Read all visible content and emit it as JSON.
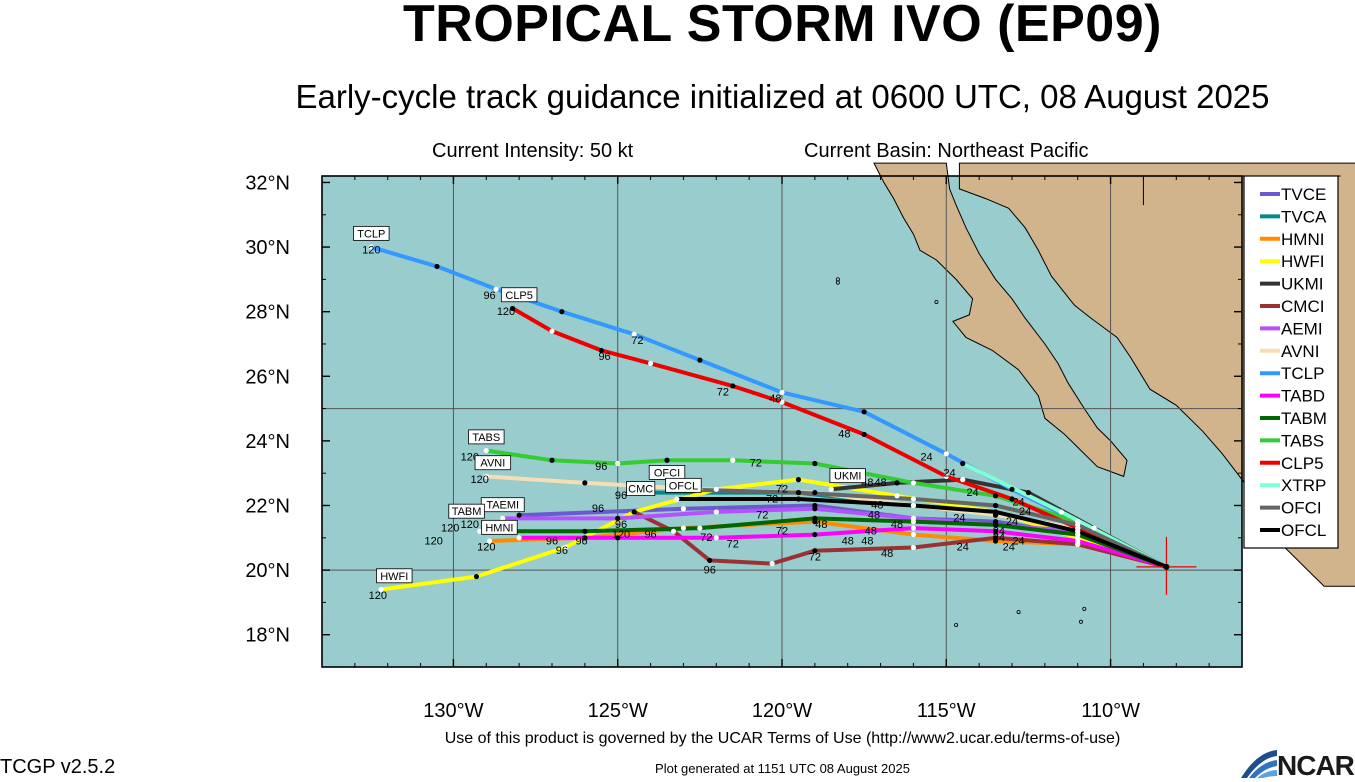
{
  "header": {
    "title": "TROPICAL STORM IVO (EP09)",
    "subtitle": "Early-cycle track guidance initialized at 0600 UTC, 08 August 2025",
    "intensity": "Current Intensity: 50 kt",
    "basin": "Current Basin: Northeast Pacific"
  },
  "footer": {
    "terms": "Use of this product is governed by the UCAR Terms of Use (http://www2.ucar.edu/terms-of-use)",
    "generated": "Plot generated at 1151 UTC   08 August 2025",
    "version": "TCGP v2.5.2",
    "logo": "NCAR"
  },
  "colors": {
    "ocean": "#99cccc",
    "land": "#d2b48c",
    "grid": "#555555"
  },
  "chart_data": {
    "type": "line",
    "xlabel": "",
    "ylabel": "",
    "xlim": [
      -134,
      -106
    ],
    "ylim": [
      17,
      32.2
    ],
    "x_ticks": [
      {
        "v": -130,
        "label": "130°W"
      },
      {
        "v": -125,
        "label": "125°W"
      },
      {
        "v": -120,
        "label": "120°W"
      },
      {
        "v": -115,
        "label": "115°W"
      },
      {
        "v": -110,
        "label": "110°W"
      }
    ],
    "y_ticks": [
      {
        "v": 18,
        "label": "18°N"
      },
      {
        "v": 20,
        "label": "20°N"
      },
      {
        "v": 22,
        "label": "22°N"
      },
      {
        "v": 24,
        "label": "24°N"
      },
      {
        "v": 26,
        "label": "26°N"
      },
      {
        "v": 28,
        "label": "28°N"
      },
      {
        "v": 30,
        "label": "30°N"
      },
      {
        "v": 32,
        "label": "32°N"
      }
    ],
    "storm_center": [
      -108.3,
      20.1
    ],
    "series": [
      {
        "name": "TVCE",
        "color": "#6a5acd",
        "points": [
          [
            -108.3,
            20.1
          ],
          [
            -111,
            21.1
          ],
          [
            -113.5,
            21.5
          ],
          [
            -116,
            21.6
          ],
          [
            -119,
            22.0
          ],
          [
            -123,
            21.9
          ],
          [
            -128,
            21.7
          ]
        ]
      },
      {
        "name": "TVCA",
        "color": "#008b8b",
        "points": [
          [
            -108.3,
            20.1
          ],
          [
            -111,
            21.3
          ],
          [
            -113.5,
            21.7
          ],
          [
            -116,
            22.0
          ],
          [
            -119.5,
            22.4
          ],
          [
            -124.5,
            22.4
          ]
        ]
      },
      {
        "name": "HMNI",
        "color": "#ff8c00",
        "points": [
          [
            -108.3,
            20.1
          ],
          [
            -111,
            20.8
          ],
          [
            -113.5,
            20.9
          ],
          [
            -116,
            21.1
          ],
          [
            -119,
            21.5
          ],
          [
            -123,
            21.3
          ],
          [
            -126,
            21.0
          ],
          [
            -128.9,
            20.9
          ]
        ]
      },
      {
        "name": "HWFI",
        "color": "#ffff00",
        "points": [
          [
            -108.3,
            20.1
          ],
          [
            -111,
            21.0
          ],
          [
            -113.5,
            21.8
          ],
          [
            -116.5,
            22.3
          ],
          [
            -119.5,
            22.8
          ],
          [
            -122,
            22.5
          ],
          [
            -124.5,
            21.8
          ],
          [
            -126.6,
            20.7
          ],
          [
            -129.3,
            19.8
          ],
          [
            -132.2,
            19.4
          ]
        ]
      },
      {
        "name": "UKMI",
        "color": "#333333",
        "points": [
          [
            -108.3,
            20.1
          ],
          [
            -110.5,
            21.3
          ],
          [
            -112.5,
            22.4
          ],
          [
            -114.5,
            22.8
          ],
          [
            -116.5,
            22.7
          ],
          [
            -118.5,
            22.5
          ]
        ]
      },
      {
        "name": "CMCI",
        "color": "#993333",
        "points": [
          [
            -108.3,
            20.1
          ],
          [
            -111,
            20.8
          ],
          [
            -113.5,
            21.0
          ],
          [
            -116,
            20.7
          ],
          [
            -119,
            20.6
          ],
          [
            -120.3,
            20.2
          ],
          [
            -122.2,
            20.3
          ],
          [
            -123.3,
            21.2
          ],
          [
            -124.5,
            21.8
          ]
        ]
      },
      {
        "name": "AEMI",
        "color": "#b452ff",
        "points": [
          [
            -108.3,
            20.1
          ],
          [
            -111,
            21.2
          ],
          [
            -113.5,
            21.4
          ],
          [
            -116,
            21.6
          ],
          [
            -119,
            21.9
          ],
          [
            -122,
            21.8
          ],
          [
            -125,
            21.6
          ],
          [
            -128.5,
            21.6
          ]
        ]
      },
      {
        "name": "AVNI",
        "color": "#f5deb3",
        "points": [
          [
            -108.3,
            20.1
          ],
          [
            -111,
            21.3
          ],
          [
            -113.5,
            21.7
          ],
          [
            -116,
            22.0
          ],
          [
            -119,
            22.4
          ],
          [
            -122.5,
            22.5
          ],
          [
            -126,
            22.7
          ],
          [
            -129,
            22.9
          ]
        ]
      },
      {
        "name": "TCLP",
        "color": "#3399ff",
        "points": [
          [
            -108.3,
            20.1
          ],
          [
            -111,
            21.5
          ],
          [
            -113,
            22.5
          ],
          [
            -115,
            23.6
          ],
          [
            -117.5,
            24.9
          ],
          [
            -120,
            25.5
          ],
          [
            -122.5,
            26.5
          ],
          [
            -124.5,
            27.3
          ],
          [
            -126.7,
            28.0
          ],
          [
            -128.7,
            28.7
          ],
          [
            -130.5,
            29.4
          ],
          [
            -132.5,
            30.0
          ]
        ]
      },
      {
        "name": "TABD",
        "color": "#ff00ff",
        "points": [
          [
            -108.3,
            20.1
          ],
          [
            -111,
            20.9
          ],
          [
            -113.5,
            21.2
          ],
          [
            -116,
            21.3
          ],
          [
            -119,
            21.1
          ],
          [
            -122,
            21.0
          ],
          [
            -125,
            21.0
          ],
          [
            -128,
            21.0
          ]
        ]
      },
      {
        "name": "TABM",
        "color": "#006600",
        "points": [
          [
            -108.3,
            20.1
          ],
          [
            -111,
            21.1
          ],
          [
            -113.5,
            21.4
          ],
          [
            -116,
            21.5
          ],
          [
            -119,
            21.6
          ],
          [
            -122.5,
            21.3
          ],
          [
            -126,
            21.2
          ],
          [
            -129.2,
            21.2
          ]
        ]
      },
      {
        "name": "TABS",
        "color": "#33cc33",
        "points": [
          [
            -108.3,
            20.1
          ],
          [
            -111,
            21.5
          ],
          [
            -113.5,
            22.3
          ],
          [
            -116,
            22.7
          ],
          [
            -119,
            23.3
          ],
          [
            -121.5,
            23.4
          ],
          [
            -123.5,
            23.4
          ],
          [
            -125,
            23.3
          ],
          [
            -127,
            23.4
          ],
          [
            -129,
            23.7
          ]
        ]
      },
      {
        "name": "CLP5",
        "color": "#ee0000",
        "points": [
          [
            -108.3,
            20.1
          ],
          [
            -111,
            21.3
          ],
          [
            -113,
            22.2
          ],
          [
            -115,
            22.9
          ],
          [
            -117.5,
            24.2
          ],
          [
            -120,
            25.2
          ],
          [
            -121.5,
            25.7
          ],
          [
            -124,
            26.4
          ],
          [
            -125.5,
            26.8
          ],
          [
            -127,
            27.4
          ],
          [
            -128.2,
            28.1
          ]
        ]
      },
      {
        "name": "XTRP",
        "color": "#7fffd4",
        "points": [
          [
            -108.3,
            20.1
          ],
          [
            -111.5,
            21.8
          ],
          [
            -114.5,
            23.3
          ]
        ]
      },
      {
        "name": "OFCI",
        "color": "#666666",
        "points": [
          [
            -108.3,
            20.1
          ],
          [
            -111,
            21.4
          ],
          [
            -113.5,
            22.0
          ],
          [
            -116,
            22.2
          ],
          [
            -119.5,
            22.4
          ],
          [
            -123.3,
            22.5
          ]
        ]
      },
      {
        "name": "OFCL",
        "color": "#000000",
        "points": [
          [
            -108.3,
            20.1
          ],
          [
            -111,
            21.2
          ],
          [
            -113.5,
            21.8
          ],
          [
            -116,
            22.0
          ],
          [
            -119.5,
            22.2
          ],
          [
            -123.2,
            22.2
          ]
        ]
      }
    ],
    "end_labels": [
      {
        "text": "TCLP",
        "lon": -132.5,
        "lat": 30.3
      },
      {
        "text": "CLP5",
        "lon": -128.0,
        "lat": 28.4
      },
      {
        "text": "TABS",
        "lon": -129.0,
        "lat": 24.0
      },
      {
        "text": "AVNI",
        "lon": -128.8,
        "lat": 23.2
      },
      {
        "text": "OFCI",
        "lon": -123.5,
        "lat": 22.9
      },
      {
        "text": "OFCL",
        "lon": -123.0,
        "lat": 22.5
      },
      {
        "text": "CMC",
        "lon": -124.3,
        "lat": 22.4
      },
      {
        "text": "UKMI",
        "lon": -118.0,
        "lat": 22.8
      },
      {
        "text": "TAEMI",
        "lon": -128.5,
        "lat": 21.9
      },
      {
        "text": "TABM",
        "lon": -129.6,
        "lat": 21.7
      },
      {
        "text": "HMNI",
        "lon": -128.6,
        "lat": 21.2
      },
      {
        "text": "HWFI",
        "lon": -131.8,
        "lat": 19.7
      }
    ],
    "hour_labels": [
      {
        "text": "120",
        "lon": -132.5,
        "lat": 29.8
      },
      {
        "text": "96",
        "lon": -128.9,
        "lat": 28.4
      },
      {
        "text": "120",
        "lon": -128.4,
        "lat": 27.9
      },
      {
        "text": "72",
        "lon": -124.4,
        "lat": 27.0
      },
      {
        "text": "96",
        "lon": -125.4,
        "lat": 26.5
      },
      {
        "text": "72",
        "lon": -121.8,
        "lat": 25.4
      },
      {
        "text": "48",
        "lon": -120.2,
        "lat": 25.2
      },
      {
        "text": "48",
        "lon": -118.1,
        "lat": 24.1
      },
      {
        "text": "24",
        "lon": -115.6,
        "lat": 23.4
      },
      {
        "text": "24",
        "lon": -114.9,
        "lat": 22.9
      },
      {
        "text": "120",
        "lon": -129.5,
        "lat": 23.4
      },
      {
        "text": "96",
        "lon": -125.5,
        "lat": 23.1
      },
      {
        "text": "72",
        "lon": -120.8,
        "lat": 23.2
      },
      {
        "text": "120",
        "lon": -129.2,
        "lat": 22.7
      },
      {
        "text": "24",
        "lon": -114.2,
        "lat": 22.3
      },
      {
        "text": "24",
        "lon": -112.8,
        "lat": 22.0
      },
      {
        "text": "24",
        "lon": -112.6,
        "lat": 21.7
      },
      {
        "text": "48",
        "lon": -117.0,
        "lat": 22.6
      },
      {
        "text": "72",
        "lon": -120.0,
        "lat": 22.4
      },
      {
        "text": "72",
        "lon": -120.3,
        "lat": 22.1
      },
      {
        "text": "72",
        "lon": -120.6,
        "lat": 21.6
      },
      {
        "text": "72",
        "lon": -120.0,
        "lat": 21.1
      },
      {
        "text": "72",
        "lon": -122.3,
        "lat": 20.9
      },
      {
        "text": "72",
        "lon": -121.5,
        "lat": 20.7
      },
      {
        "text": "72",
        "lon": -119.0,
        "lat": 20.3
      },
      {
        "text": "96",
        "lon": -124.9,
        "lat": 21.3
      },
      {
        "text": "96",
        "lon": -124.0,
        "lat": 21.0
      },
      {
        "text": "96",
        "lon": -122.2,
        "lat": 19.9
      },
      {
        "text": "96",
        "lon": -125.6,
        "lat": 21.8
      },
      {
        "text": "96",
        "lon": -124.9,
        "lat": 22.2
      },
      {
        "text": "120",
        "lon": -124.9,
        "lat": 21.0
      },
      {
        "text": "96",
        "lon": -126.1,
        "lat": 20.8
      },
      {
        "text": "96",
        "lon": -126.7,
        "lat": 20.5
      },
      {
        "text": "96",
        "lon": -127.0,
        "lat": 20.8
      },
      {
        "text": "120",
        "lon": -129.0,
        "lat": 20.6
      },
      {
        "text": "120",
        "lon": -130.6,
        "lat": 20.8
      },
      {
        "text": "120",
        "lon": -130.1,
        "lat": 21.2
      },
      {
        "text": "120",
        "lon": -129.5,
        "lat": 21.3
      },
      {
        "text": "120",
        "lon": -132.3,
        "lat": 19.1
      },
      {
        "text": "48",
        "lon": -118.8,
        "lat": 21.3
      },
      {
        "text": "48",
        "lon": -118.0,
        "lat": 20.8
      },
      {
        "text": "48",
        "lon": -117.4,
        "lat": 20.8
      },
      {
        "text": "48",
        "lon": -116.8,
        "lat": 20.4
      },
      {
        "text": "48",
        "lon": -117.3,
        "lat": 21.1
      },
      {
        "text": "48",
        "lon": -116.5,
        "lat": 21.3
      },
      {
        "text": "48",
        "lon": -117.2,
        "lat": 21.6
      },
      {
        "text": "48",
        "lon": -117.1,
        "lat": 21.9
      },
      {
        "text": "48",
        "lon": -117.4,
        "lat": 22.6
      },
      {
        "text": "24",
        "lon": -114.5,
        "lat": 20.6
      },
      {
        "text": "24",
        "lon": -113.1,
        "lat": 20.6
      },
      {
        "text": "24",
        "lon": -113.4,
        "lat": 21.1
      },
      {
        "text": "24",
        "lon": -113.0,
        "lat": 21.4
      },
      {
        "text": "24",
        "lon": -113.4,
        "lat": 20.9
      },
      {
        "text": "24",
        "lon": -112.8,
        "lat": 20.8
      },
      {
        "text": "24",
        "lon": -114.6,
        "lat": 21.5
      }
    ]
  }
}
